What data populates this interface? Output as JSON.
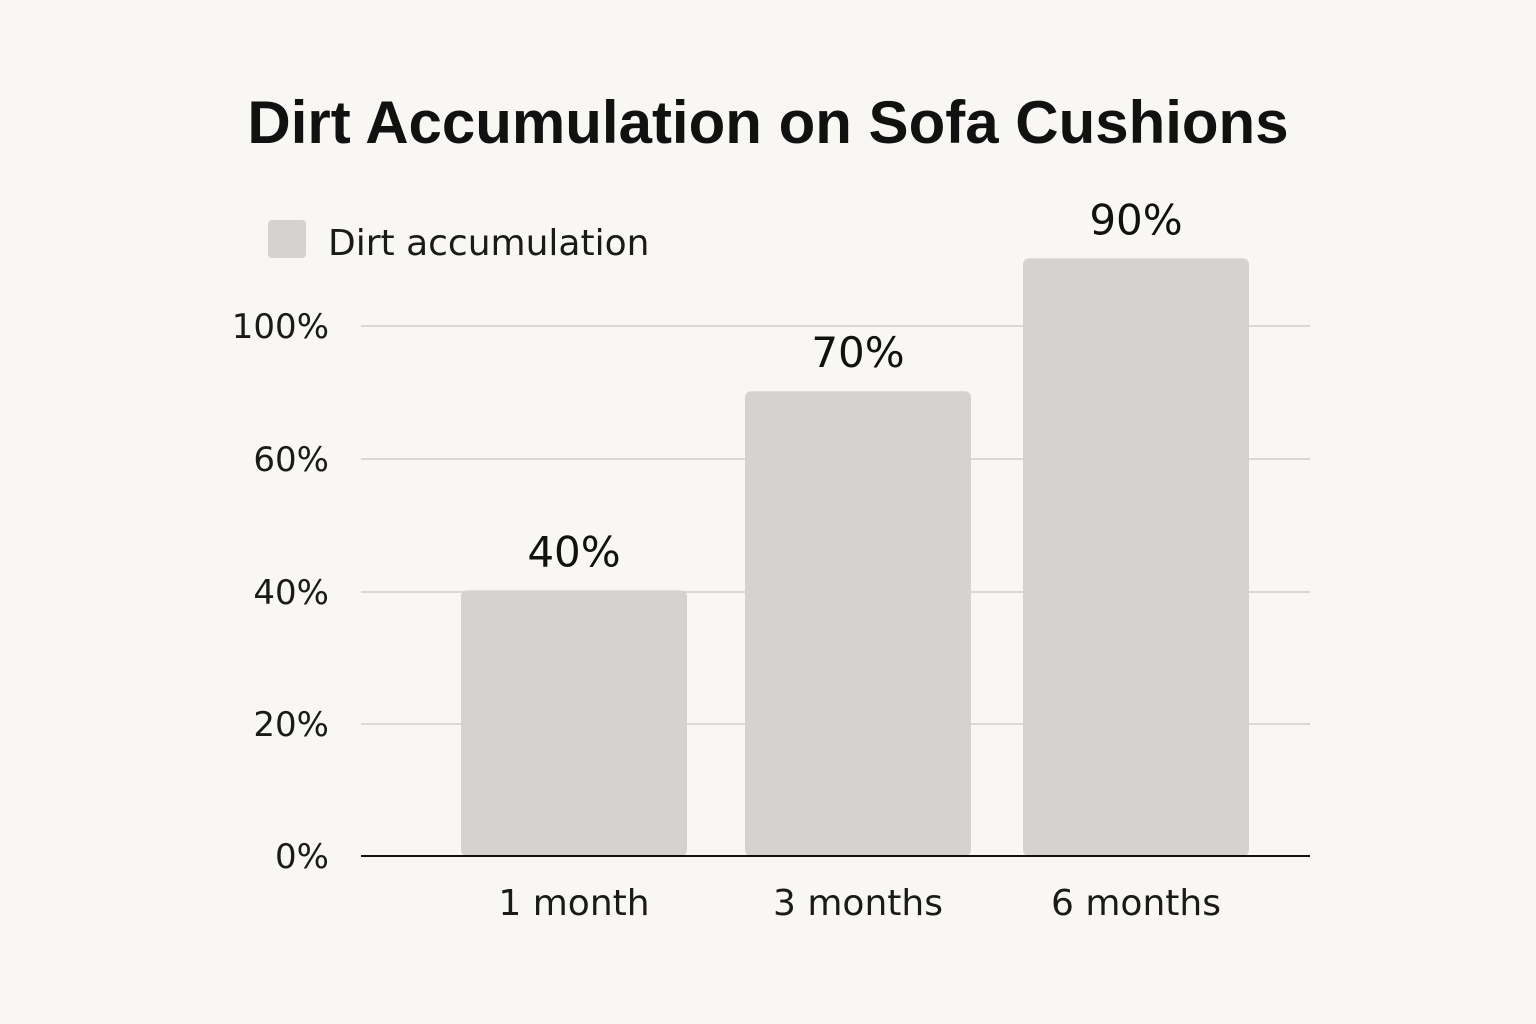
{
  "chart_data": {
    "type": "bar",
    "title": "Dirt Accumulation on Sofa Cushions",
    "xlabel": "",
    "ylabel": "",
    "categories": [
      "1 month",
      "3 months",
      "6 months"
    ],
    "series": [
      {
        "name": "Dirt accumulation",
        "values": [
          40,
          70,
          90
        ],
        "data_labels": [
          "40%",
          "70%",
          "90%"
        ]
      }
    ],
    "y_ticks": [
      {
        "value": 0,
        "label": "0%"
      },
      {
        "value": 20,
        "label": "20%"
      },
      {
        "value": 40,
        "label": "40%"
      },
      {
        "value": 60,
        "label": "60%"
      },
      {
        "value": 100,
        "label": "100%"
      }
    ],
    "grid": true,
    "legend_position": "top-left",
    "colors": {
      "bar": "#d4d3cf",
      "background": "#f8f7f3",
      "text": "#111111"
    }
  }
}
